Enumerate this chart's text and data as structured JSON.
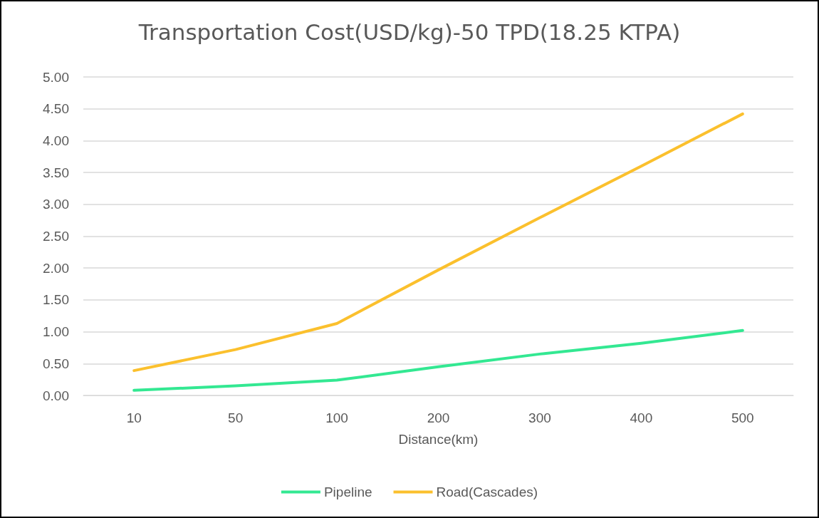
{
  "chart_data": {
    "type": "line",
    "title": "Transportation Cost(USD/kg)-50 TPD(18.25 KTPA)",
    "xlabel": "Distance(km)",
    "categories": [
      "10",
      "50",
      "100",
      "200",
      "300",
      "400",
      "500"
    ],
    "series": [
      {
        "name": "Pipeline",
        "color": "#33e892",
        "values": [
          0.08,
          0.15,
          0.24,
          0.45,
          0.65,
          0.82,
          1.02
        ]
      },
      {
        "name": "Road(Cascades)",
        "color": "#fbc02d",
        "values": [
          0.39,
          0.72,
          1.13,
          1.97,
          2.79,
          3.6,
          4.42
        ]
      }
    ],
    "ylim": [
      0,
      5
    ],
    "yticks": [
      {
        "value": 0,
        "label": "0.00"
      },
      {
        "value": 0.5,
        "label": "0.50"
      },
      {
        "value": 1,
        "label": "1.00"
      },
      {
        "value": 1.5,
        "label": "1.50"
      },
      {
        "value": 2,
        "label": "2.00"
      },
      {
        "value": 2.5,
        "label": "2.50"
      },
      {
        "value": 3,
        "label": "3.00"
      },
      {
        "value": 3.5,
        "label": "3.50"
      },
      {
        "value": 4,
        "label": "4.00"
      },
      {
        "value": 4.5,
        "label": "4.50"
      },
      {
        "value": 5,
        "label": "5.00"
      }
    ],
    "grid": "y",
    "legend": "bottom",
    "marker": "none",
    "line_style": "solid"
  }
}
